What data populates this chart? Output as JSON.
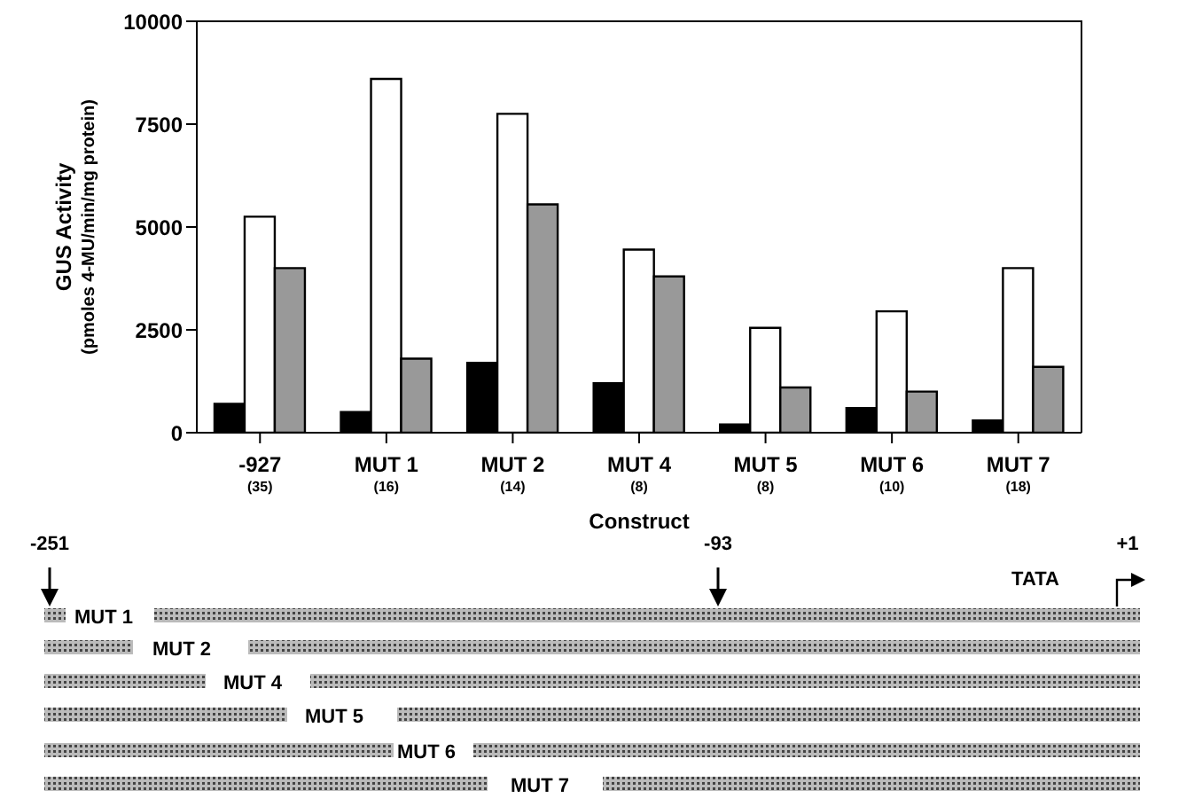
{
  "chart_data": {
    "type": "bar",
    "categories": [
      "-927\n(35)",
      "MUT 1\n(16)",
      "MUT 2\n(14)",
      "MUT 4\n(8)",
      "MUT 5\n(8)",
      "MUT 6\n(10)",
      "MUT 7\n(18)"
    ],
    "series": [
      {
        "color": "#000000",
        "values": [
          700,
          500,
          1700,
          1200,
          200,
          600,
          300
        ]
      },
      {
        "color": "#ffffff",
        "values": [
          5250,
          8600,
          7750,
          4450,
          2550,
          2950,
          4000
        ]
      },
      {
        "color": "#999999",
        "values": [
          4000,
          1800,
          5550,
          3800,
          1100,
          1000,
          1600
        ]
      }
    ],
    "ylim": [
      0,
      10000
    ],
    "yticks": [
      0,
      2500,
      5000,
      7500,
      10000
    ],
    "xlabel": "Construct",
    "ylabel": "GUS  Activity\n(pmoles 4-MU/min/mg protein)",
    "annotations": [
      "-251",
      "-93",
      "+1",
      "TATA",
      "MUT 1",
      "MUT 2",
      "MUT 4",
      "MUT 5",
      "MUT 6",
      "MUT 7"
    ]
  }
}
